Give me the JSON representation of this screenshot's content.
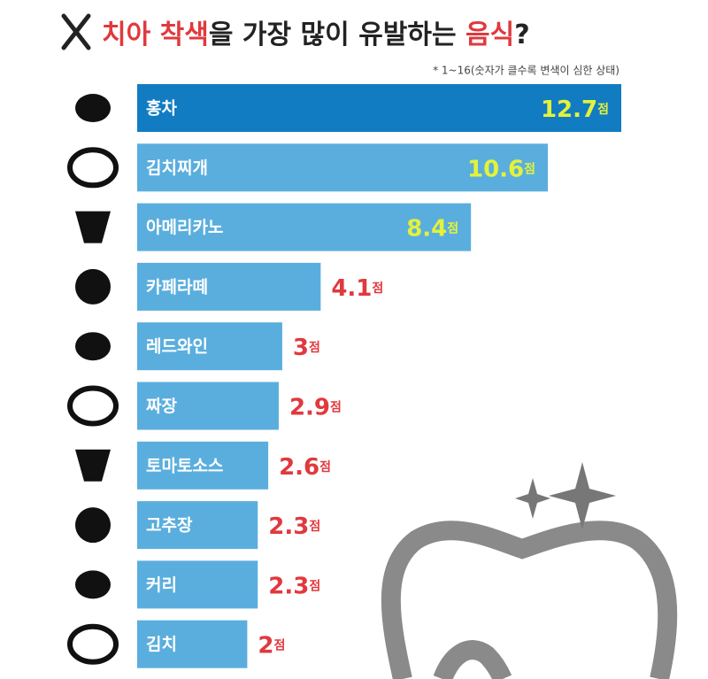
{
  "chart_data": {
    "type": "bar",
    "orientation": "horizontal",
    "title": [
      {
        "text": "치아 착색",
        "color": "#e0393e"
      },
      {
        "text": "을 가장 많이 유발하는 ",
        "color": "#222222"
      },
      {
        "text": "음식",
        "color": "#e0393e"
      },
      {
        "text": "?",
        "color": "#222222"
      }
    ],
    "subtitle": "* 1~16(숫자가 클수록 변색이 심한 상태)",
    "categories": [
      "홍차",
      "김치찌개",
      "아메리카노",
      "카페라떼",
      "레드와인",
      "짜장",
      "토마토소스",
      "고추장",
      "커리",
      "김치"
    ],
    "values": [
      12.7,
      10.6,
      8.4,
      4.1,
      3,
      2.9,
      2.6,
      2.3,
      2.3,
      2
    ],
    "value_labels": [
      "12.7점",
      "10.6점",
      "8.4점",
      "4.1점",
      "3점",
      "2.9점",
      "2.6점",
      "2.3점",
      "2.3점",
      "2점"
    ],
    "colors": [
      "#127cc2",
      "#5aaede",
      "#5aaede",
      "#5aaede",
      "#5aaede",
      "#5aaede",
      "#5aaede",
      "#5aaede",
      "#5aaede",
      "#5aaede"
    ],
    "label_colors": [
      "#e3f23a",
      "#e3f23a",
      "#e3f23a",
      "#e0393e",
      "#e0393e",
      "#e0393e",
      "#e0393e",
      "#e0393e",
      "#e0393e",
      "#e0393e"
    ],
    "label_inside": [
      true,
      true,
      true,
      false,
      false,
      false,
      false,
      false,
      false,
      false
    ],
    "xlim": [
      -1.15,
      12.7
    ]
  }
}
